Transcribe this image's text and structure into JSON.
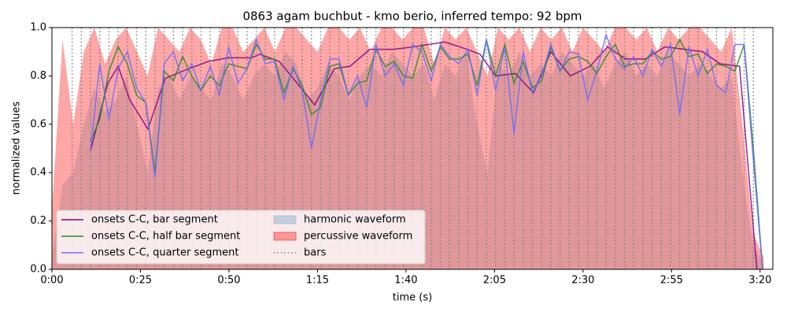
{
  "chart_data": {
    "type": "line",
    "title": "0863 agam buchbut - kmo berio, inferred tempo: 92 bpm",
    "x_label": "time (s)",
    "y_label": "normalized values",
    "xlim": [
      0,
      203.6
    ],
    "ylim": [
      0,
      1
    ],
    "xticks": [
      {
        "value": 0,
        "label": "0:00"
      },
      {
        "value": 25,
        "label": "0:25"
      },
      {
        "value": 50,
        "label": "0:50"
      },
      {
        "value": 75,
        "label": "1:15"
      },
      {
        "value": 100,
        "label": "1:40"
      },
      {
        "value": 125,
        "label": "2:05"
      },
      {
        "value": 150,
        "label": "2:30"
      },
      {
        "value": 175,
        "label": "2:55"
      },
      {
        "value": 200,
        "label": "3:20"
      }
    ],
    "yticks": [
      {
        "value": 0,
        "label": "0.0"
      },
      {
        "value": 0.2,
        "label": "0.2"
      },
      {
        "value": 0.4,
        "label": "0.4"
      },
      {
        "value": 0.6,
        "label": "0.6"
      },
      {
        "value": 0.8,
        "label": "0.8"
      },
      {
        "value": 1.0,
        "label": "1.0"
      }
    ],
    "legend": "lower left",
    "areas": [
      {
        "name": "harmonic waveform",
        "color": "#add8e6",
        "x": [
          0,
          3,
          6,
          9,
          12,
          15,
          18,
          21,
          24,
          27,
          30,
          33,
          36,
          39,
          42,
          45,
          48,
          51,
          54,
          57,
          60,
          63,
          66,
          69,
          72,
          75,
          78,
          81,
          84,
          87,
          90,
          93,
          96,
          99,
          102,
          105,
          108,
          111,
          114,
          117,
          120,
          123,
          126,
          129,
          132,
          135,
          138,
          141,
          144,
          147,
          150,
          153,
          156,
          159,
          162,
          165,
          168,
          171,
          174,
          177,
          180,
          183,
          186,
          189,
          192,
          195,
          198,
          201
        ],
        "values": [
          0.05,
          0.35,
          0.4,
          0.6,
          0.75,
          0.65,
          0.7,
          0.8,
          0.6,
          0.4,
          0.75,
          0.8,
          0.7,
          0.8,
          0.75,
          0.7,
          0.85,
          0.8,
          0.7,
          0.8,
          0.85,
          0.8,
          0.9,
          0.85,
          0.7,
          0.75,
          0.85,
          0.8,
          0.7,
          0.8,
          0.85,
          0.8,
          0.9,
          0.85,
          0.8,
          0.85,
          0.7,
          0.85,
          0.8,
          0.9,
          0.6,
          0.4,
          0.85,
          0.8,
          0.9,
          0.8,
          0.85,
          0.8,
          0.9,
          0.85,
          0.8,
          0.85,
          0.75,
          0.85,
          0.9,
          0.8,
          0.85,
          0.8,
          0.9,
          0.85,
          0.8,
          0.85,
          0.8,
          0.75,
          0.8,
          0.4,
          0.1,
          0.02
        ]
      },
      {
        "name": "percussive waveform",
        "color": "#ff0000",
        "x": [
          0,
          3,
          6,
          9,
          12,
          15,
          18,
          21,
          24,
          27,
          30,
          33,
          36,
          39,
          42,
          45,
          48,
          51,
          54,
          57,
          60,
          63,
          66,
          69,
          72,
          75,
          78,
          81,
          84,
          87,
          90,
          93,
          96,
          99,
          102,
          105,
          108,
          111,
          114,
          117,
          120,
          123,
          126,
          129,
          132,
          135,
          138,
          141,
          144,
          147,
          150,
          153,
          156,
          159,
          162,
          165,
          168,
          171,
          174,
          177,
          180,
          183,
          186,
          189,
          192,
          195,
          198,
          201
        ],
        "values": [
          0.25,
          0.95,
          0.6,
          0.9,
          1.0,
          0.85,
          0.95,
          1.0,
          0.9,
          0.8,
          1.0,
          0.95,
          0.9,
          1.0,
          0.95,
          0.85,
          1.0,
          1.0,
          0.9,
          0.95,
          1.0,
          0.9,
          1.0,
          1.0,
          0.95,
          0.9,
          1.0,
          1.0,
          0.95,
          1.0,
          0.9,
          1.0,
          1.0,
          0.95,
          1.0,
          1.0,
          0.85,
          1.0,
          0.95,
          1.0,
          0.9,
          0.8,
          1.0,
          0.95,
          1.0,
          0.9,
          1.0,
          0.95,
          1.0,
          0.9,
          1.0,
          0.95,
          0.9,
          1.0,
          1.0,
          0.95,
          1.0,
          0.9,
          1.0,
          0.95,
          1.0,
          1.0,
          0.95,
          0.9,
          1.0,
          0.6,
          0.15,
          0.05
        ]
      }
    ],
    "series": [
      {
        "name": "onsets C-C, bar segment",
        "color": "#800080",
        "x": [
          10.9,
          15.8,
          18.7,
          22.0,
          27.1,
          32.0,
          38.7,
          44.2,
          49.8,
          56.4,
          58.7,
          64.2,
          68.7,
          74.2,
          79.8,
          84.2,
          89.8,
          96.4,
          102.0,
          110.9,
          115.3,
          120.9,
          125.3,
          130.9,
          136.0,
          140.9,
          146.4,
          152.0,
          156.9,
          162.0,
          167.6,
          173.1,
          178.7,
          183.8,
          188.7,
          194.2,
          199.1
        ],
        "values": [
          0.49,
          0.77,
          0.84,
          0.7,
          0.58,
          0.79,
          0.83,
          0.86,
          0.875,
          0.875,
          0.89,
          0.86,
          0.78,
          0.68,
          0.83,
          0.84,
          0.91,
          0.91,
          0.92,
          0.94,
          0.92,
          0.89,
          0.8,
          0.81,
          0.73,
          0.9,
          0.8,
          0.84,
          0.92,
          0.87,
          0.87,
          0.92,
          0.91,
          0.9,
          0.85,
          0.84,
          0.0
        ]
      },
      {
        "name": "onsets C-C, half bar segment",
        "color": "#228b22",
        "x": [
          10.9,
          13.5,
          16.1,
          18.7,
          21.3,
          23.9,
          26.5,
          29.1,
          31.7,
          34.3,
          36.9,
          39.5,
          42.1,
          44.7,
          47.3,
          49.9,
          52.5,
          55.1,
          57.7,
          60.3,
          62.9,
          65.5,
          68.1,
          70.7,
          73.3,
          75.9,
          78.5,
          81.1,
          83.7,
          86.3,
          88.9,
          91.5,
          94.1,
          96.7,
          99.3,
          101.9,
          104.5,
          107.1,
          109.7,
          112.3,
          114.9,
          117.5,
          120.1,
          122.7,
          125.3,
          127.9,
          130.5,
          133.1,
          135.7,
          138.3,
          140.9,
          143.5,
          146.1,
          148.7,
          151.3,
          153.9,
          156.5,
          159.1,
          161.7,
          164.3,
          166.9,
          169.5,
          172.1,
          174.7,
          177.3,
          179.9,
          182.5,
          185.1,
          187.7,
          190.3,
          192.9,
          195.5,
          198.1,
          200.7
        ],
        "values": [
          0.53,
          0.62,
          0.82,
          0.92,
          0.85,
          0.72,
          0.69,
          0.4,
          0.82,
          0.78,
          0.88,
          0.8,
          0.74,
          0.8,
          0.76,
          0.85,
          0.84,
          0.83,
          0.93,
          0.87,
          0.87,
          0.73,
          0.83,
          0.76,
          0.64,
          0.67,
          0.84,
          0.85,
          0.72,
          0.77,
          0.78,
          0.91,
          0.84,
          0.86,
          0.8,
          0.79,
          0.93,
          0.82,
          0.92,
          0.87,
          0.87,
          0.89,
          0.76,
          0.95,
          0.8,
          0.93,
          0.77,
          0.86,
          0.75,
          0.78,
          0.92,
          0.82,
          0.87,
          0.88,
          0.86,
          0.81,
          0.88,
          0.93,
          0.84,
          0.85,
          0.85,
          0.9,
          0.87,
          0.88,
          0.95,
          0.88,
          0.89,
          0.81,
          0.85,
          0.84,
          0.82,
          0.93,
          0.5,
          0.0
        ]
      },
      {
        "name": "onsets C-C, quarter segment",
        "color": "#6a6aff",
        "x": [
          10.9,
          13.5,
          16.1,
          18.7,
          21.3,
          23.9,
          26.5,
          29.1,
          31.7,
          34.3,
          36.9,
          39.5,
          42.1,
          44.7,
          47.3,
          49.9,
          52.5,
          55.1,
          57.7,
          60.3,
          62.9,
          65.5,
          68.1,
          70.7,
          73.3,
          75.9,
          78.5,
          81.1,
          83.7,
          86.3,
          88.9,
          91.5,
          94.1,
          96.7,
          99.3,
          101.9,
          104.5,
          107.1,
          109.7,
          112.3,
          114.9,
          117.5,
          120.1,
          122.7,
          125.3,
          127.9,
          130.5,
          133.1,
          135.7,
          138.3,
          140.9,
          143.5,
          146.1,
          148.7,
          151.3,
          153.9,
          156.5,
          159.1,
          161.7,
          164.3,
          166.9,
          169.5,
          172.1,
          174.7,
          177.3,
          179.9,
          182.5,
          185.1,
          187.7,
          190.3,
          192.9,
          195.5,
          198.1,
          200.7
        ],
        "values": [
          0.49,
          0.85,
          0.62,
          0.83,
          0.9,
          0.75,
          0.69,
          0.38,
          0.85,
          0.9,
          0.78,
          0.85,
          0.74,
          0.84,
          0.72,
          0.92,
          0.77,
          0.83,
          0.95,
          0.85,
          0.86,
          0.7,
          0.84,
          0.74,
          0.5,
          0.7,
          0.87,
          0.87,
          0.72,
          0.8,
          0.67,
          0.93,
          0.8,
          0.85,
          0.76,
          0.93,
          0.9,
          0.78,
          0.93,
          0.88,
          0.85,
          0.91,
          0.72,
          0.95,
          0.74,
          0.92,
          0.56,
          0.9,
          0.73,
          0.8,
          0.93,
          0.82,
          0.9,
          0.89,
          0.7,
          0.82,
          0.97,
          0.87,
          0.83,
          0.88,
          0.8,
          0.91,
          0.84,
          0.93,
          0.64,
          0.92,
          0.8,
          0.91,
          0.76,
          0.73,
          0.93,
          0.93,
          0.45,
          0.0
        ]
      }
    ],
    "bars": {
      "name": "bars",
      "color": "#808080",
      "values": [
        5.7,
        8.3,
        10.9,
        13.5,
        16.1,
        18.7,
        21.3,
        23.9,
        26.5,
        29.1,
        31.7,
        34.3,
        36.9,
        39.5,
        42.1,
        44.7,
        47.3,
        49.9,
        52.5,
        55.1,
        57.7,
        60.3,
        62.9,
        65.5,
        68.1,
        70.7,
        73.3,
        75.9,
        78.5,
        81.1,
        83.7,
        86.3,
        88.9,
        91.5,
        94.1,
        96.7,
        99.3,
        101.9,
        104.5,
        107.1,
        109.7,
        112.3,
        114.9,
        117.5,
        120.1,
        122.7,
        125.3,
        127.9,
        130.5,
        133.1,
        135.7,
        138.3,
        140.9,
        143.5,
        146.1,
        148.7,
        151.3,
        153.9,
        156.5,
        159.1,
        161.7,
        164.3,
        166.9,
        169.5,
        172.1,
        174.7,
        177.3,
        179.9,
        182.5,
        185.1,
        187.7,
        190.3,
        192.9,
        195.5,
        198.1
      ]
    }
  }
}
